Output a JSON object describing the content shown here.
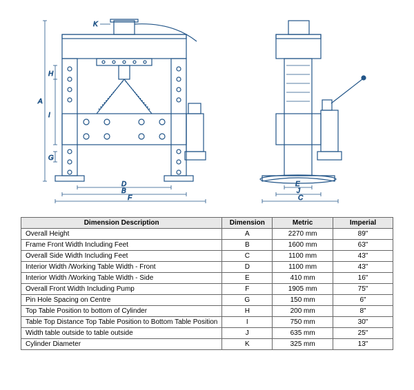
{
  "drawing": {
    "stroke_color": "#225588",
    "stroke_width": 1.2,
    "dim_font_size": 10
  },
  "front_labels": {
    "A": "A",
    "B": "B",
    "D": "D",
    "F": "F",
    "G": "G",
    "H": "H",
    "I": "I",
    "K": "K"
  },
  "side_labels": {
    "C": "C",
    "E": "E",
    "J": "J"
  },
  "table": {
    "headers": {
      "desc": "Dimension Description",
      "dim": "Dimension",
      "metric": "Metric",
      "imperial": "Imperial"
    },
    "rows": [
      {
        "desc": "Overall Height",
        "dim": "A",
        "metric": "2270 mm",
        "imperial": "89\""
      },
      {
        "desc": "Frame Front Width Including Feet",
        "dim": "B",
        "metric": "1600 mm",
        "imperial": "63\""
      },
      {
        "desc": "Overall Side Width Including Feet",
        "dim": "C",
        "metric": "1100 mm",
        "imperial": "43\""
      },
      {
        "desc": "Interior Width /Working Table Width - Front",
        "dim": "D",
        "metric": "1100 mm",
        "imperial": "43\""
      },
      {
        "desc": "Interior Width /Working Table Width - Side",
        "dim": "E",
        "metric": "410 mm",
        "imperial": "16\""
      },
      {
        "desc": "Overall Front Width Including Pump",
        "dim": "F",
        "metric": "1905 mm",
        "imperial": "75\""
      },
      {
        "desc": "Pin Hole Spacing on Centre",
        "dim": "G",
        "metric": "150 mm",
        "imperial": "6\""
      },
      {
        "desc": "Top Table Position to bottom of Cylinder",
        "dim": "H",
        "metric": "200 mm",
        "imperial": "8\""
      },
      {
        "desc": "Table Top Distance Top Table Position to Bottom Table Position",
        "dim": "I",
        "metric": "750 mm",
        "imperial": "30\""
      },
      {
        "desc": "Width table outside to table outside",
        "dim": "J",
        "metric": "635 mm",
        "imperial": "25\""
      },
      {
        "desc": "Cylinder Diameter",
        "dim": "K",
        "metric": "325 mm",
        "imperial": "13\""
      }
    ]
  }
}
